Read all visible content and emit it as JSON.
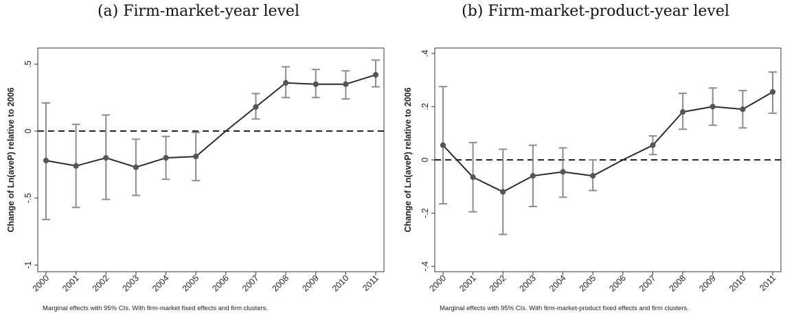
{
  "chart_data": [
    {
      "type": "line",
      "title": "(a) Firm-market-year level",
      "xlabel": "",
      "ylabel": "Change of Ln(aveP) relative to 2006",
      "note": "Marginal effects with 95% CIs. With firm-market fixed effects and firm clusters.",
      "ylim": [
        -1.05,
        0.62
      ],
      "yticks": [
        -1,
        -0.5,
        0,
        0.5
      ],
      "ytick_labels": [
        "-1",
        "-.5",
        "0",
        ".5"
      ],
      "categories": [
        "2000",
        "2001",
        "2002",
        "2003",
        "2004",
        "2005",
        "2006",
        "2007",
        "2008",
        "2009",
        "2010",
        "2011"
      ],
      "series": [
        {
          "values": [
            -0.22,
            -0.26,
            -0.2,
            -0.27,
            -0.2,
            -0.19,
            0.0,
            0.18,
            0.36,
            0.35,
            0.35,
            0.42
          ],
          "ci_low": [
            -0.66,
            -0.57,
            -0.51,
            -0.48,
            -0.36,
            -0.37,
            null,
            0.09,
            0.25,
            0.25,
            0.24,
            0.33
          ],
          "ci_high": [
            0.21,
            0.05,
            0.12,
            -0.06,
            -0.04,
            -0.01,
            null,
            0.28,
            0.48,
            0.46,
            0.45,
            0.53
          ]
        }
      ],
      "reference_line": 0,
      "grid": false
    },
    {
      "type": "line",
      "title": "(b) Firm-market-product-year level",
      "xlabel": "",
      "ylabel": "Change of Ln(aveP) relative to 2006",
      "note": "Marginal effects with 95% CIs. With firm-market-product fixed effects and firm clusters.",
      "ylim": [
        -0.42,
        0.42
      ],
      "yticks": [
        -0.4,
        -0.2,
        0,
        0.2,
        0.4
      ],
      "ytick_labels": [
        "-.4",
        "-.2",
        "0",
        ".2",
        ".4"
      ],
      "categories": [
        "2000",
        "2001",
        "2002",
        "2003",
        "2004",
        "2005",
        "2006",
        "2007",
        "2008",
        "2009",
        "2010",
        "2011"
      ],
      "series": [
        {
          "values": [
            0.055,
            -0.065,
            -0.12,
            -0.06,
            -0.045,
            -0.06,
            0.0,
            0.055,
            0.18,
            0.2,
            0.19,
            0.255
          ],
          "ci_low": [
            -0.165,
            -0.195,
            -0.28,
            -0.175,
            -0.14,
            -0.115,
            null,
            0.02,
            0.115,
            0.13,
            0.12,
            0.175
          ],
          "ci_high": [
            0.275,
            0.065,
            0.04,
            0.055,
            0.045,
            0.0,
            null,
            0.09,
            0.25,
            0.27,
            0.26,
            0.33
          ]
        }
      ],
      "reference_line": 0,
      "grid": false
    }
  ],
  "colors": {
    "line": "#2a2a2a",
    "marker": "#555555",
    "ci": "#8c8c8c",
    "frame": "#333333"
  }
}
